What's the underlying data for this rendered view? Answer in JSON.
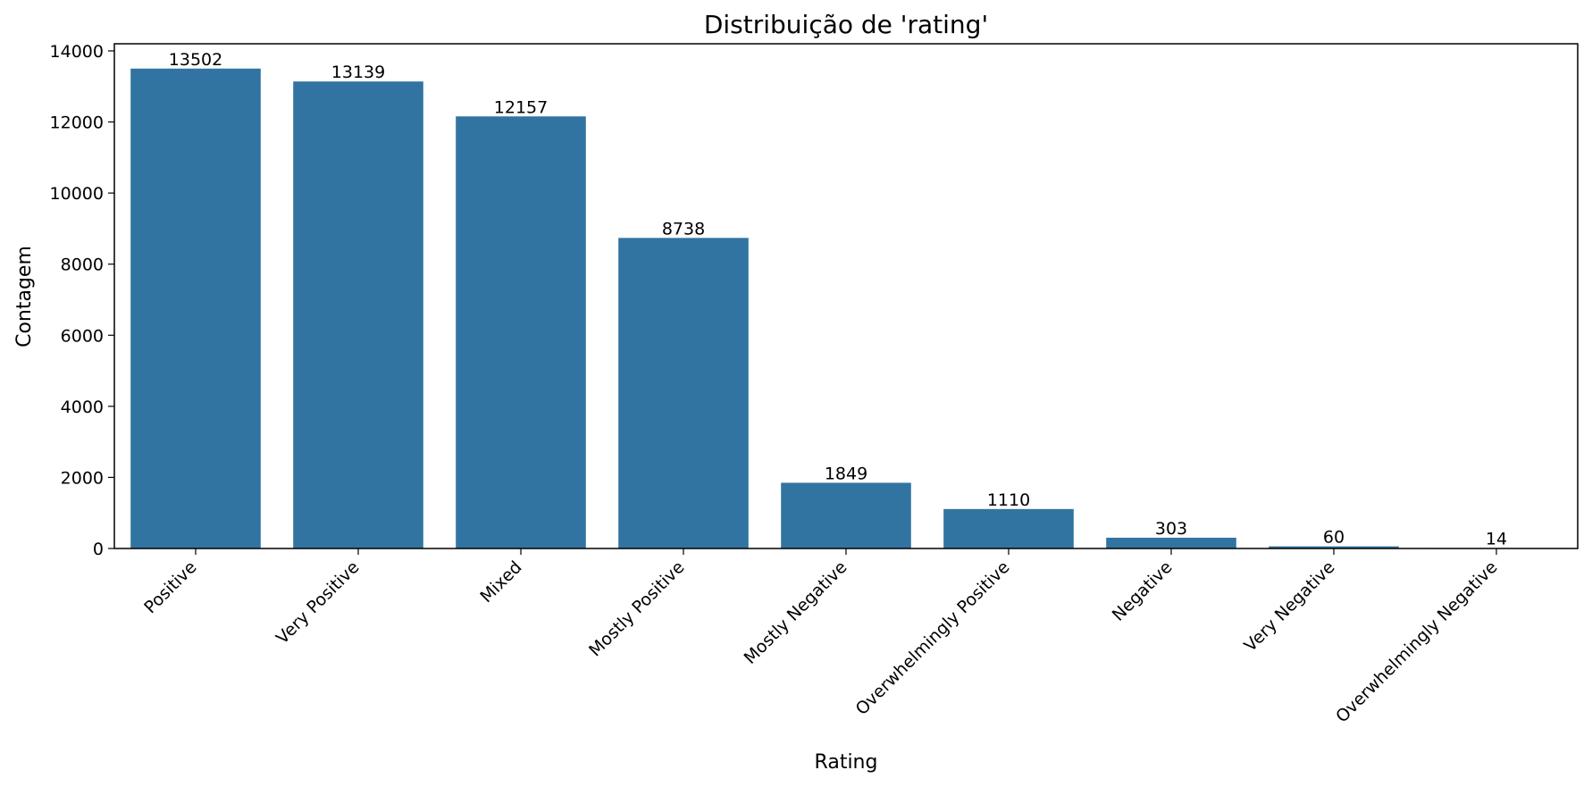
{
  "chart_data": {
    "type": "bar",
    "title": "Distribuição de 'rating'",
    "xlabel": "Rating",
    "ylabel": "Contagem",
    "categories": [
      "Positive",
      "Very Positive",
      "Mixed",
      "Mostly Positive",
      "Mostly Negative",
      "Overwhelmingly Positive",
      "Negative",
      "Very Negative",
      "Overwhelmingly Negative"
    ],
    "values": [
      13502,
      13139,
      12157,
      8738,
      1849,
      1110,
      303,
      60,
      14
    ],
    "data_labels": [
      "13502",
      "13139",
      "12157",
      "8738",
      "1849",
      "1110",
      "303",
      "60",
      "14"
    ],
    "ylim": [
      0,
      14200
    ],
    "yticks": [
      0,
      2000,
      4000,
      6000,
      8000,
      10000,
      12000,
      14000
    ],
    "ytick_labels": [
      "0",
      "2000",
      "4000",
      "6000",
      "8000",
      "10000",
      "12000",
      "14000"
    ],
    "grid": false,
    "legend": "none",
    "bar_color": "#3274a1",
    "tick_label_rotation_deg": -45
  }
}
